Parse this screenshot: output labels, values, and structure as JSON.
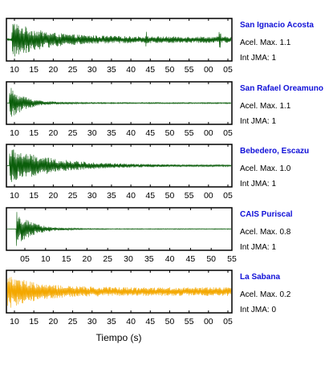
{
  "chart_data": {
    "type": "line",
    "xlabel": "Tiempo (s)",
    "grid": false,
    "colors": {
      "default_trace": "#0b5e0b",
      "highlight_trace": "#f4a800",
      "station_label": "#1010d8",
      "frame": "#000000"
    },
    "panels": [
      {
        "station": "San Ignacio Acosta",
        "acel_text": "Acel. Max. 1.1",
        "int_text": "Int JMA: 1",
        "acel_max": 1.1,
        "int_jma": 1,
        "trace_color": "#0b5e0b",
        "tick_labels": [
          "10",
          "15",
          "20",
          "25",
          "30",
          "35",
          "40",
          "45",
          "50",
          "55",
          "00",
          "05"
        ],
        "envelope": {
          "onset": 0.02,
          "peak": 0.95,
          "decay": 0.14,
          "floor": 0.16,
          "spikes": [
            0.62,
            0.95
          ]
        }
      },
      {
        "station": "San Rafael Oreamuno",
        "acel_text": "Acel. Max. 1.1",
        "int_text": "Int JMA: 1",
        "acel_max": 1.1,
        "int_jma": 1,
        "trace_color": "#0b5e0b",
        "tick_labels": [
          "10",
          "15",
          "20",
          "25",
          "30",
          "35",
          "40",
          "45",
          "50",
          "55",
          "00",
          "05"
        ],
        "envelope": {
          "onset": 0.01,
          "peak": 0.85,
          "decay": 0.07,
          "floor": 0.03,
          "spikes": []
        }
      },
      {
        "station": "Bebedero, Escazu",
        "acel_text": "Acel. Max. 1.0",
        "int_text": "Int JMA: 1",
        "acel_max": 1.0,
        "int_jma": 1,
        "trace_color": "#0b5e0b",
        "tick_labels": [
          "10",
          "15",
          "20",
          "25",
          "30",
          "35",
          "40",
          "45",
          "50",
          "55",
          "00",
          "05"
        ],
        "envelope": {
          "onset": 0.01,
          "peak": 0.9,
          "decay": 0.2,
          "floor": 0.04,
          "spikes": []
        }
      },
      {
        "station": "CAIS Puriscal",
        "acel_text": "Acel. Max. 0.8",
        "int_text": "Int JMA: 1",
        "acel_max": 0.8,
        "int_jma": 1,
        "trace_color": "#0b5e0b",
        "tick_labels": [
          "05",
          "10",
          "15",
          "20",
          "25",
          "30",
          "35",
          "40",
          "45",
          "50",
          "55"
        ],
        "envelope": {
          "onset": 0.04,
          "peak": 0.9,
          "decay": 0.07,
          "floor": 0.02,
          "spikes": []
        }
      },
      {
        "station": "La Sabana",
        "acel_text": "Acel. Max. 0.2",
        "int_text": "Int JMA: 0",
        "acel_max": 0.2,
        "int_jma": 0,
        "trace_color": "#f4a800",
        "tick_labels": [
          "10",
          "15",
          "20",
          "25",
          "30",
          "35",
          "40",
          "45",
          "50",
          "55",
          "00",
          "05"
        ],
        "envelope": {
          "onset": 0.0,
          "peak": 0.9,
          "decay": 0.12,
          "floor": 0.22,
          "spikes": []
        }
      }
    ]
  }
}
